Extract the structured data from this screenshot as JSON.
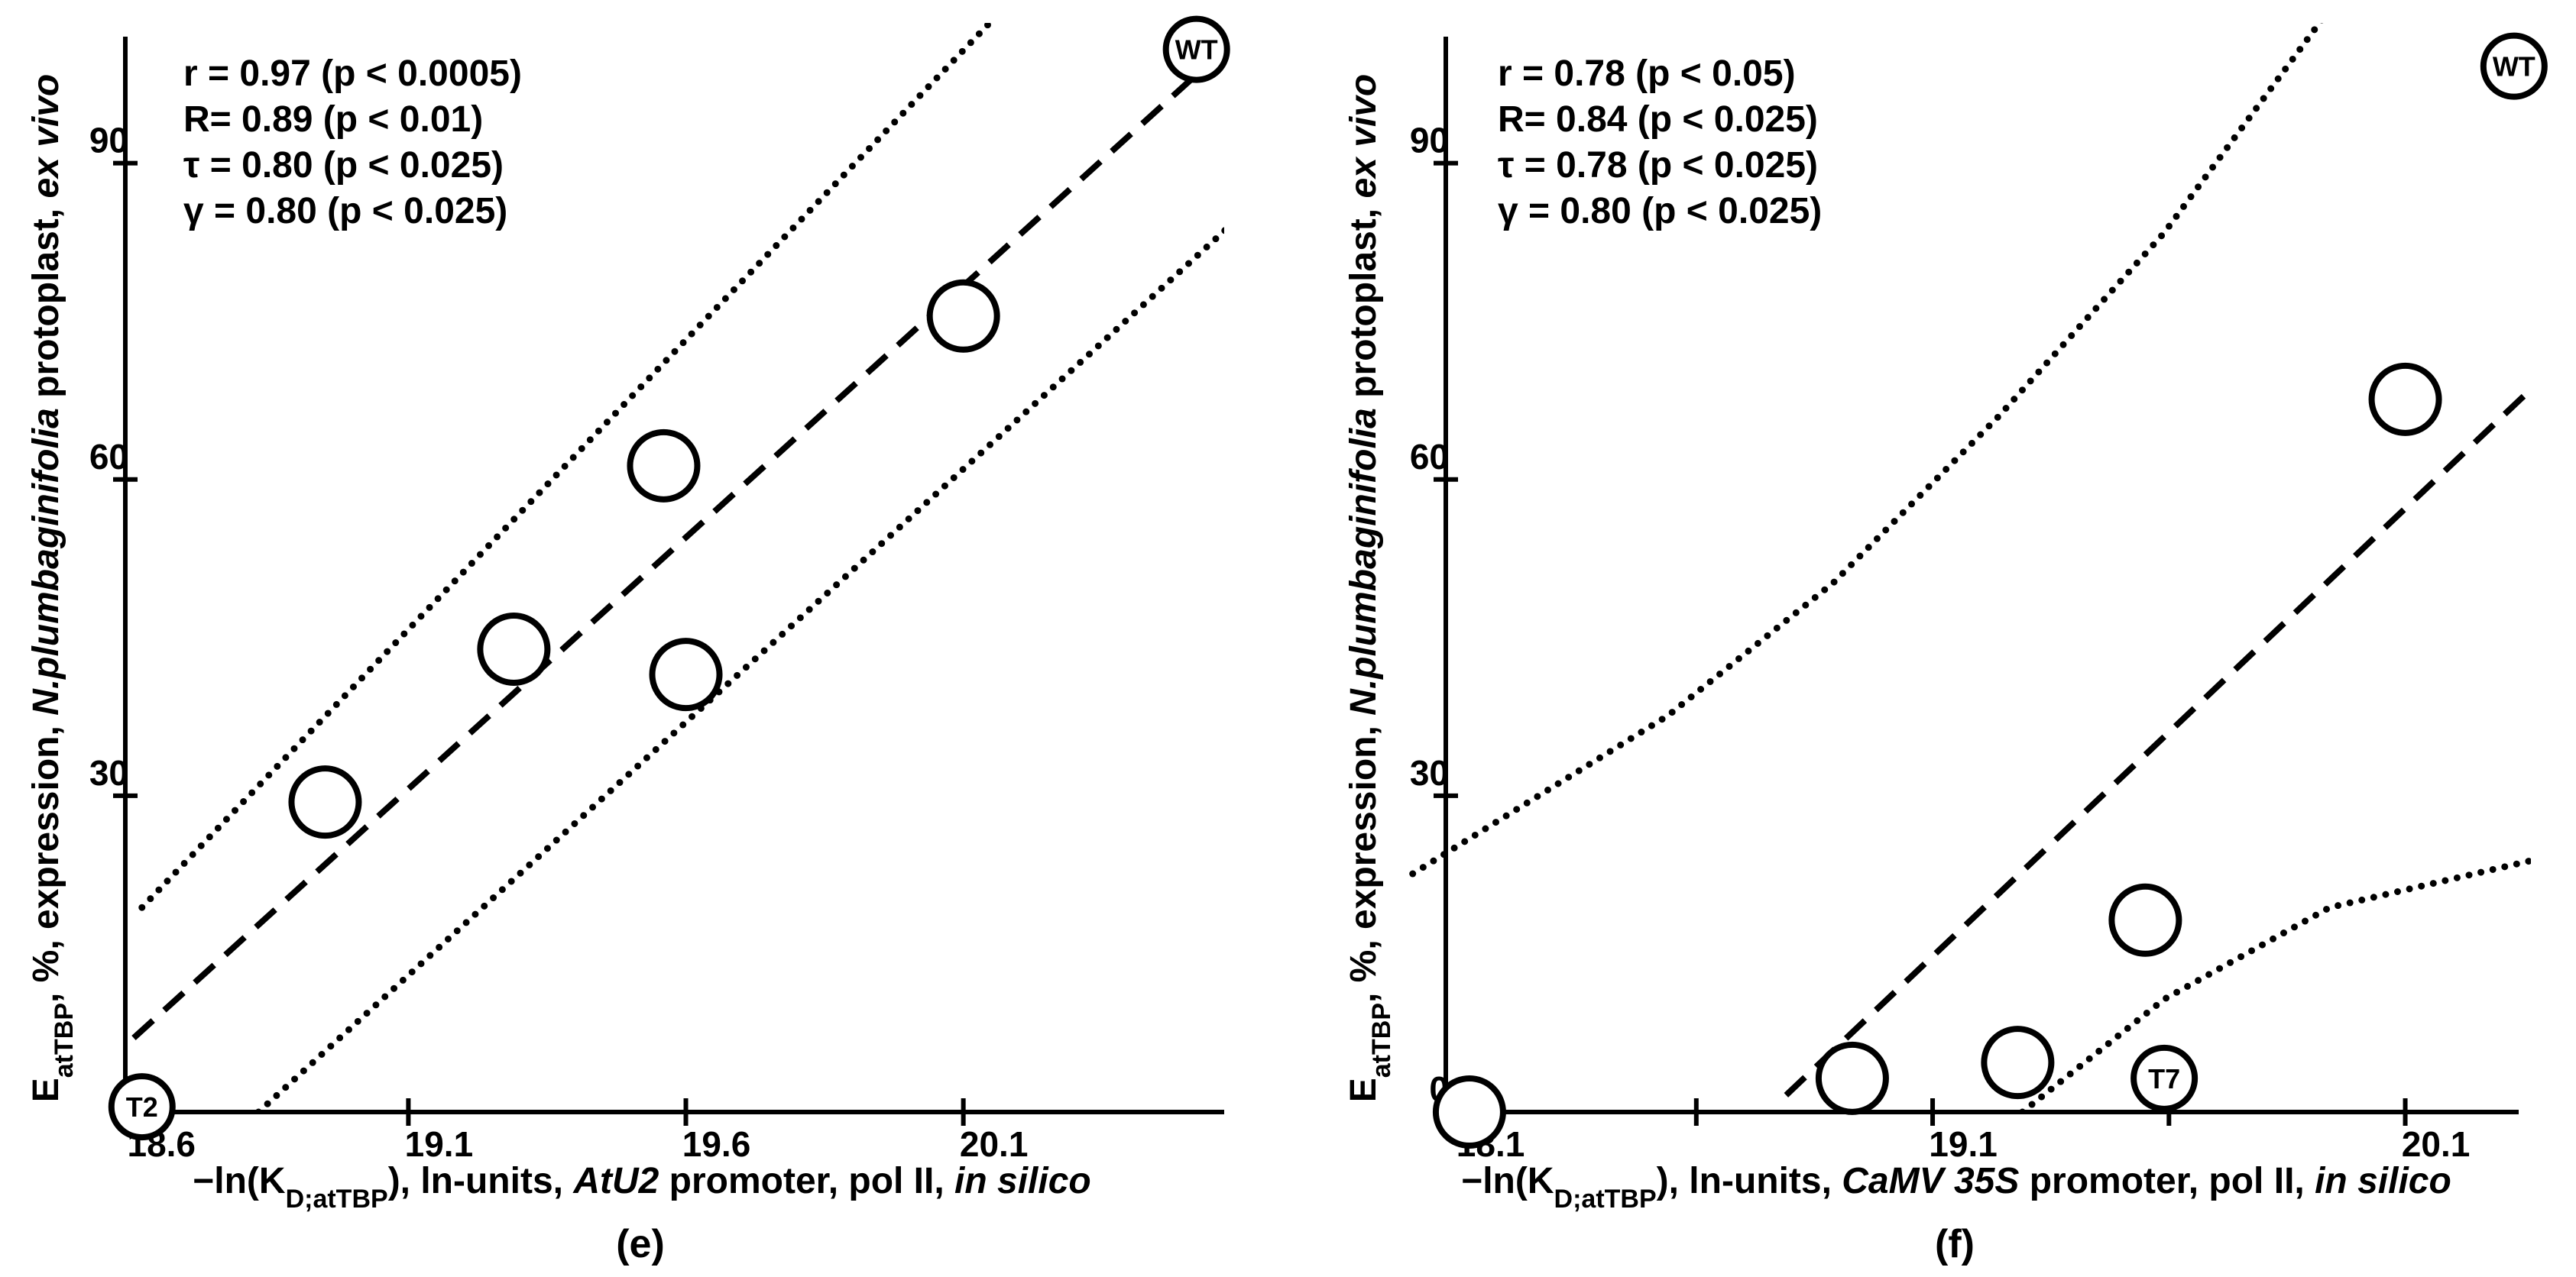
{
  "chart_data": [
    {
      "type": "scatter",
      "panel_label": "(e)",
      "color": "#000000",
      "annotations": [
        "r = 0.97 (p < 0.0005)",
        "R= 0.89 (p < 0.01)",
        "τ = 0.80 (p < 0.025)",
        "γ = 0.80 (p < 0.025)"
      ],
      "xlabel": [
        "−ln(K",
        "D;atTBP",
        "), ln-units, ",
        "AtU2",
        " promoter, pol II, ",
        "in silico"
      ],
      "ylabel": [
        "E",
        "atTBP",
        ", %, expression, ",
        "N.plumbaginifolia",
        " protoplast, ",
        "ex vivo"
      ],
      "x": [
        18.62,
        18.95,
        19.29,
        19.56,
        19.6,
        20.1,
        20.52
      ],
      "values": [
        0.5,
        29.4,
        43.9,
        61.3,
        41.5,
        75.5,
        100.8
      ],
      "point_labels": [
        "T2",
        null,
        null,
        null,
        null,
        null,
        "WT"
      ],
      "xlim": [
        18.59,
        20.57
      ],
      "ylim": [
        0,
        102
      ],
      "xticks": [
        18.6,
        19.1,
        19.6,
        20.1
      ],
      "xminorticks": [],
      "yticks": [
        30,
        60,
        90
      ],
      "lines": [
        {
          "style": "dashed",
          "x": [
            18.55,
            20.52
          ],
          "y": [
            4.4,
            98.4
          ]
        },
        {
          "style": "dotted",
          "x": [
            18.62,
            20.16
          ],
          "y": [
            19.4,
            104
          ]
        },
        {
          "style": "dotted",
          "x": [
            18.83,
            20.6
          ],
          "y": [
            0,
            85
          ]
        }
      ]
    },
    {
      "type": "scatter",
      "panel_label": "(f)",
      "color": "#000000",
      "annotations": [
        "r = 0.78 (p < 0.05)",
        "R= 0.84 (p < 0.025)",
        "τ = 0.78 (p < 0.025)",
        "γ = 0.80 (p < 0.025)"
      ],
      "xlabel": [
        "−ln(K",
        "D;atTBP",
        "), ln-units, ",
        "CaMV 35S",
        " promoter, pol II, ",
        "in silico"
      ],
      "ylabel": [
        "E",
        "atTBP",
        ", %, expression, ",
        "N.plumbaginifolia",
        " protoplast, ",
        "ex vivo"
      ],
      "x": [
        18.12,
        18.93,
        19.28,
        19.55,
        19.59,
        20.1,
        20.33
      ],
      "values": [
        0,
        3.2,
        4.7,
        18.2,
        3.2,
        67.6,
        99.2
      ],
      "point_labels": [
        null,
        null,
        null,
        null,
        "T7",
        null,
        "WT"
      ],
      "xlim": [
        18.07,
        20.34
      ],
      "ylim": [
        0,
        102
      ],
      "xticks": [
        18.1,
        19.1,
        20.1
      ],
      "xminorticks": [
        18.6,
        19.6
      ],
      "yticks": [
        0,
        30,
        60,
        90
      ],
      "lines": [
        {
          "style": "dashed",
          "x": [
            18.79,
            20.4
          ],
          "y": [
            1.6,
            70
          ]
        },
        {
          "style": "dotted",
          "x": [
            18.0,
            18.54,
            18.89,
            19.24,
            19.59,
            19.93
          ],
          "y": [
            22.6,
            37.6,
            50.2,
            66,
            83.4,
            104
          ]
        },
        {
          "style": "dotted",
          "x": [
            19.29,
            19.59,
            19.94,
            20.4
          ],
          "y": [
            0,
            10.7,
            19.4,
            24.2
          ]
        }
      ]
    }
  ]
}
